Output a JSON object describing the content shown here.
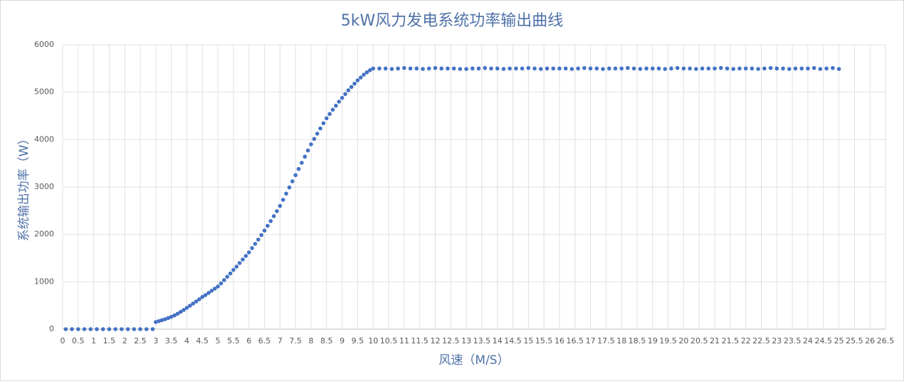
{
  "chart_data": {
    "type": "scatter",
    "title": "5kW风力发电系统功率输出曲线",
    "x_label": "风速（M/S）",
    "y_label": "系统输出功率（W）",
    "color": "#4472c4",
    "grid": true,
    "xlim": [
      0,
      26.5
    ],
    "ylim": [
      0,
      6000
    ],
    "xticks": [
      0,
      0.5,
      1,
      1.5,
      2,
      2.5,
      3,
      3.5,
      4,
      4.5,
      5,
      5.5,
      6,
      6.5,
      7,
      7.5,
      8,
      8.5,
      9,
      9.5,
      10,
      10.5,
      11,
      11.5,
      12,
      12.5,
      13,
      13.5,
      14,
      14.5,
      15,
      15.5,
      16,
      16.5,
      17,
      17.5,
      18,
      18.5,
      19,
      19.5,
      20,
      20.5,
      21,
      21.5,
      22,
      22.5,
      23,
      23.5,
      24,
      24.5,
      25,
      25.5,
      26,
      26.5
    ],
    "yticks": [
      0,
      1000,
      2000,
      3000,
      4000,
      5000,
      6000
    ],
    "x": [
      0.1,
      0.3,
      0.5,
      0.7,
      0.9,
      1.1,
      1.3,
      1.5,
      1.7,
      1.9,
      2.1,
      2.3,
      2.5,
      2.7,
      2.9,
      3,
      3.1,
      3.2,
      3.3,
      3.4,
      3.5,
      3.6,
      3.7,
      3.8,
      3.9,
      4,
      4.1,
      4.2,
      4.3,
      4.4,
      4.5,
      4.6,
      4.7,
      4.8,
      4.9,
      5,
      5.1,
      5.2,
      5.3,
      5.4,
      5.5,
      5.6,
      5.7,
      5.8,
      5.9,
      6,
      6.1,
      6.2,
      6.3,
      6.4,
      6.5,
      6.6,
      6.7,
      6.8,
      6.9,
      7,
      7.1,
      7.2,
      7.3,
      7.4,
      7.5,
      7.6,
      7.7,
      7.8,
      7.9,
      8,
      8.1,
      8.2,
      8.3,
      8.4,
      8.5,
      8.6,
      8.7,
      8.8,
      8.9,
      9,
      9.1,
      9.2,
      9.3,
      9.4,
      9.5,
      9.6,
      9.7,
      9.8,
      9.9,
      10,
      10.2,
      10.4,
      10.6,
      10.8,
      11,
      11.2,
      11.4,
      11.6,
      11.8,
      12,
      12.2,
      12.4,
      12.6,
      12.8,
      13,
      13.2,
      13.4,
      13.6,
      13.8,
      14,
      14.2,
      14.4,
      14.6,
      14.8,
      15,
      15.2,
      15.4,
      15.6,
      15.8,
      16,
      16.2,
      16.4,
      16.6,
      16.8,
      17,
      17.2,
      17.4,
      17.6,
      17.8,
      18,
      18.2,
      18.4,
      18.6,
      18.8,
      19,
      19.2,
      19.4,
      19.6,
      19.8,
      20,
      20.2,
      20.4,
      20.6,
      20.8,
      21,
      21.2,
      21.4,
      21.6,
      21.8,
      22,
      22.2,
      22.4,
      22.6,
      22.8,
      23,
      23.2,
      23.4,
      23.6,
      23.8,
      24,
      24.2,
      24.4,
      24.6,
      24.8,
      25
    ],
    "values": [
      0,
      0,
      0,
      0,
      0,
      0,
      0,
      0,
      0,
      0,
      0,
      0,
      0,
      0,
      0,
      150,
      170,
      190,
      210,
      235,
      260,
      290,
      325,
      365,
      405,
      450,
      495,
      540,
      585,
      630,
      680,
      720,
      765,
      810,
      855,
      900,
      965,
      1035,
      1105,
      1175,
      1250,
      1320,
      1395,
      1470,
      1545,
      1620,
      1710,
      1800,
      1890,
      1985,
      2080,
      2180,
      2280,
      2385,
      2490,
      2600,
      2730,
      2860,
      2990,
      3120,
      3250,
      3380,
      3510,
      3640,
      3770,
      3900,
      4015,
      4125,
      4235,
      4345,
      4450,
      4540,
      4630,
      4715,
      4800,
      4880,
      4960,
      5040,
      5110,
      5180,
      5250,
      5310,
      5370,
      5420,
      5465,
      5500,
      5500,
      5500,
      5490,
      5500,
      5510,
      5500,
      5500,
      5490,
      5500,
      5510,
      5500,
      5500,
      5500,
      5490,
      5490,
      5500,
      5500,
      5510,
      5500,
      5500,
      5490,
      5500,
      5500,
      5500,
      5510,
      5500,
      5490,
      5500,
      5500,
      5500,
      5500,
      5490,
      5500,
      5510,
      5500,
      5500,
      5490,
      5500,
      5500,
      5500,
      5510,
      5500,
      5490,
      5500,
      5500,
      5500,
      5490,
      5500,
      5510,
      5500,
      5500,
      5490,
      5500,
      5500,
      5500,
      5510,
      5500,
      5490,
      5500,
      5500,
      5500,
      5490,
      5500,
      5510,
      5500,
      5500,
      5490,
      5500,
      5500,
      5500,
      5510,
      5490,
      5500,
      5510,
      5490
    ]
  }
}
